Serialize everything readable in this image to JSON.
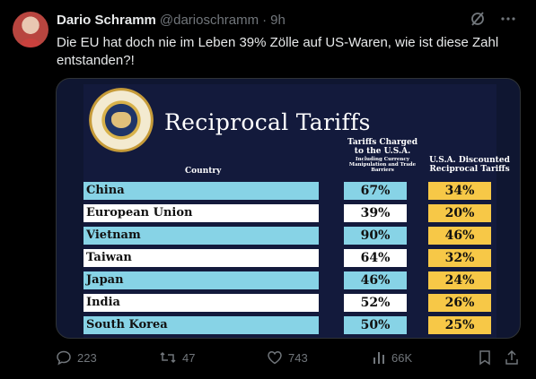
{
  "author": {
    "name": "Dario Schramm",
    "handle": "@darioschramm",
    "dot": "·",
    "time": "9h"
  },
  "text": "Die EU hat doch nie im Leben 39% Zölle auf US-Waren, wie ist diese Zahl entstanden?!",
  "image": {
    "title": "Reciprocal Tariffs",
    "column_country": "Country",
    "column_charged": "Tariffs Charged to the U.S.A.",
    "column_charged_sub": "Including Currency Manipulation and Trade Barriers",
    "column_discount": "U.S.A. Discounted Reciprocal Tariffs",
    "rows": [
      {
        "country": "China",
        "charged": "67%",
        "discount": "34%"
      },
      {
        "country": "European Union",
        "charged": "39%",
        "discount": "20%"
      },
      {
        "country": "Vietnam",
        "charged": "90%",
        "discount": "46%"
      },
      {
        "country": "Taiwan",
        "charged": "64%",
        "discount": "32%"
      },
      {
        "country": "Japan",
        "charged": "46%",
        "discount": "24%"
      },
      {
        "country": "India",
        "charged": "52%",
        "discount": "26%"
      },
      {
        "country": "South Korea",
        "charged": "50%",
        "discount": "25%"
      }
    ]
  },
  "actions": {
    "replies": "223",
    "reposts": "47",
    "likes": "743",
    "views": "66K"
  },
  "icons": {
    "grok": "grok-icon",
    "more": "more-icon",
    "reply": "reply-icon",
    "repost": "repost-icon",
    "like": "heart-icon",
    "views": "views-icon",
    "bookmark": "bookmark-icon",
    "share": "share-icon"
  },
  "colors": {
    "background": "#000000",
    "text": "#e7e9ea",
    "muted": "#71767b",
    "row_blue": "#87d3e6",
    "row_yellow": "#f7c847"
  }
}
